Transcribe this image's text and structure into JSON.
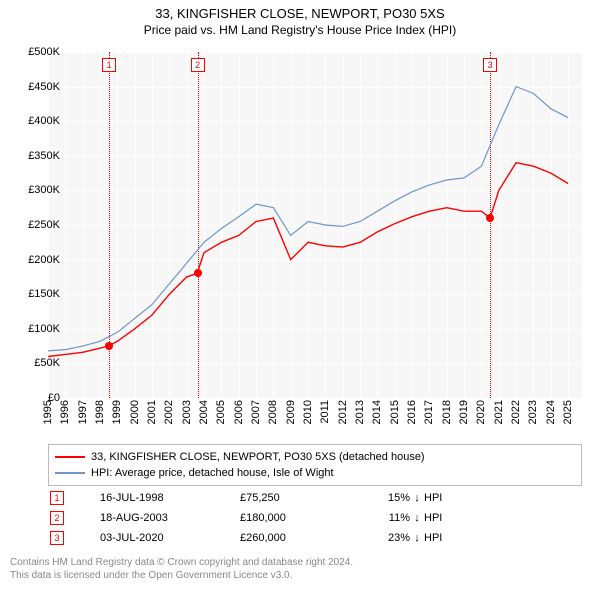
{
  "title": {
    "line1": "33, KINGFISHER CLOSE, NEWPORT, PO30 5XS",
    "line2": "Price paid vs. HM Land Registry's House Price Index (HPI)"
  },
  "chart": {
    "type": "line",
    "background_color": "#f7f7f7",
    "grid_color": "#ffffff",
    "x": {
      "min": 1995,
      "max": 2025.8,
      "ticks": [
        1995,
        1996,
        1997,
        1998,
        1999,
        2000,
        2001,
        2002,
        2003,
        2004,
        2005,
        2006,
        2007,
        2008,
        2009,
        2010,
        2011,
        2012,
        2013,
        2014,
        2015,
        2016,
        2017,
        2018,
        2019,
        2020,
        2021,
        2022,
        2023,
        2024,
        2025
      ],
      "tick_labels": [
        "1995",
        "1996",
        "1997",
        "1998",
        "1999",
        "2000",
        "2001",
        "2002",
        "2003",
        "2004",
        "2005",
        "2006",
        "2007",
        "2008",
        "2009",
        "2010",
        "2011",
        "2012",
        "2013",
        "2014",
        "2015",
        "2016",
        "2017",
        "2018",
        "2019",
        "2020",
        "2021",
        "2022",
        "2023",
        "2024",
        "2025"
      ]
    },
    "y": {
      "min": 0,
      "max": 500000,
      "ticks": [
        0,
        50000,
        100000,
        150000,
        200000,
        250000,
        300000,
        350000,
        400000,
        450000,
        500000
      ],
      "tick_labels": [
        "£0",
        "£50K",
        "£100K",
        "£150K",
        "£200K",
        "£250K",
        "£300K",
        "£350K",
        "£400K",
        "£450K",
        "£500K"
      ]
    },
    "series": [
      {
        "id": "property",
        "label": "33, KINGFISHER CLOSE, NEWPORT, PO30 5XS (detached house)",
        "color": "#ff0000",
        "line_width": 1.4,
        "data_x": [
          1995,
          1996,
          1997,
          1998,
          1998.5,
          1999,
          2000,
          2001,
          2002,
          2003,
          2003.6,
          2004,
          2005,
          2006,
          2007,
          2008,
          2009,
          2010,
          2011,
          2012,
          2013,
          2014,
          2015,
          2016,
          2017,
          2018,
          2019,
          2020,
          2020.5,
          2021,
          2022,
          2023,
          2024,
          2025
        ],
        "data_y": [
          60000,
          63000,
          66000,
          72000,
          75250,
          82000,
          100000,
          120000,
          150000,
          175000,
          180000,
          210000,
          225000,
          235000,
          255000,
          260000,
          200000,
          225000,
          220000,
          218000,
          225000,
          240000,
          252000,
          262000,
          270000,
          275000,
          270000,
          270000,
          260000,
          300000,
          340000,
          335000,
          325000,
          310000
        ]
      },
      {
        "id": "hpi",
        "label": "HPI: Average price, detached house, Isle of Wight",
        "color": "#6e97c8",
        "line_width": 1.2,
        "data_x": [
          1995,
          1996,
          1997,
          1998,
          1999,
          2000,
          2001,
          2002,
          2003,
          2004,
          2005,
          2006,
          2007,
          2008,
          2009,
          2010,
          2011,
          2012,
          2013,
          2014,
          2015,
          2016,
          2017,
          2018,
          2019,
          2020,
          2021,
          2022,
          2023,
          2024,
          2025
        ],
        "data_y": [
          68000,
          70000,
          75000,
          82000,
          95000,
          115000,
          135000,
          165000,
          195000,
          225000,
          245000,
          262000,
          280000,
          275000,
          235000,
          255000,
          250000,
          248000,
          255000,
          270000,
          285000,
          298000,
          308000,
          315000,
          318000,
          335000,
          395000,
          450000,
          440000,
          418000,
          405000
        ]
      }
    ],
    "markers": [
      {
        "n": "1",
        "x": 1998.53,
        "y": 75250
      },
      {
        "n": "2",
        "x": 2003.63,
        "y": 180000
      },
      {
        "n": "3",
        "x": 2020.5,
        "y": 260000
      }
    ]
  },
  "legend": {
    "items": [
      {
        "color": "#ff0000",
        "label": "33, KINGFISHER CLOSE, NEWPORT, PO30 5XS (detached house)"
      },
      {
        "color": "#6e97c8",
        "label": "HPI: Average price, detached house, Isle of Wight"
      }
    ]
  },
  "events": [
    {
      "n": "1",
      "date": "16-JUL-1998",
      "price": "£75,250",
      "pct": "15%",
      "arrow": "↓",
      "hpi": "HPI"
    },
    {
      "n": "2",
      "date": "18-AUG-2003",
      "price": "£180,000",
      "pct": "11%",
      "arrow": "↓",
      "hpi": "HPI"
    },
    {
      "n": "3",
      "date": "03-JUL-2020",
      "price": "£260,000",
      "pct": "23%",
      "arrow": "↓",
      "hpi": "HPI"
    }
  ],
  "footer": {
    "line1": "Contains HM Land Registry data © Crown copyright and database right 2024.",
    "line2": "This data is licensed under the Open Government Licence v3.0."
  }
}
